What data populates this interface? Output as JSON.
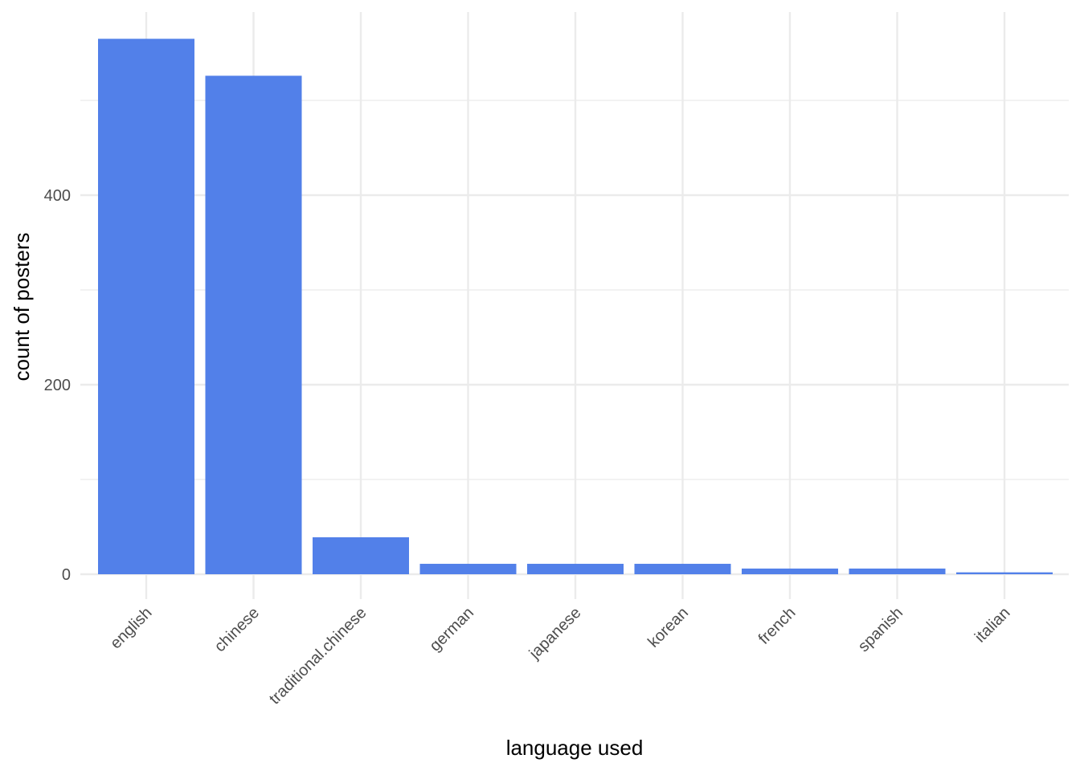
{
  "chart_data": {
    "type": "bar",
    "categories": [
      "english",
      "chinese",
      "traditional.chinese",
      "german",
      "japanese",
      "korean",
      "french",
      "spanish",
      "italian"
    ],
    "values": [
      565,
      526,
      39,
      11,
      11,
      11,
      6,
      6,
      2
    ],
    "title": "",
    "xlabel": "language used",
    "ylabel": "count of posters",
    "ylim": [
      0,
      590
    ],
    "yticks": [
      0,
      200,
      400
    ],
    "ytick_labels": [
      "0",
      "200",
      "400"
    ],
    "y_minor_ticks": [
      100,
      300,
      500
    ],
    "grid": true,
    "legend": "none",
    "bar_color": "#5280e9",
    "grid_color": "#ebebeb"
  }
}
